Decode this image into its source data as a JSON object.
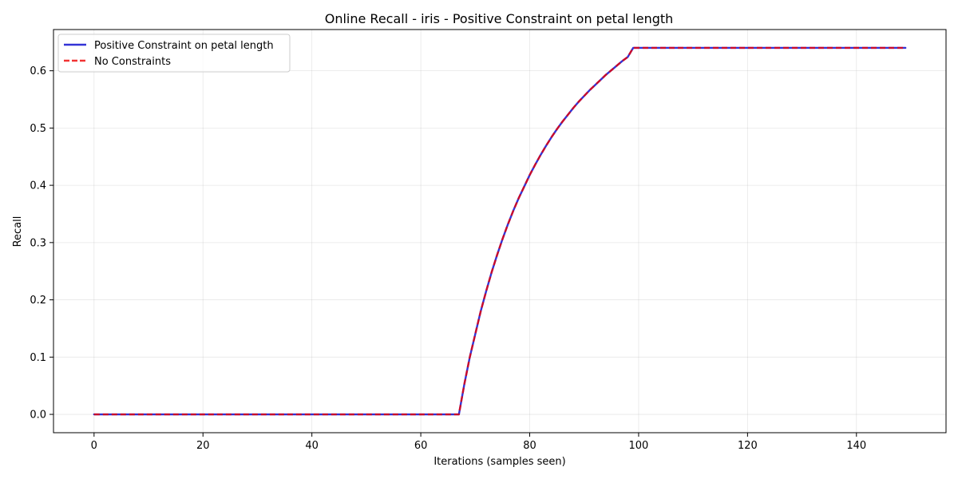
{
  "chart_data": {
    "type": "line",
    "title": "Online Recall - iris - Positive Constraint on petal length",
    "xlabel": "Iterations (samples seen)",
    "ylabel": "Recall",
    "xlim": [
      -7.45,
      156.45
    ],
    "ylim": [
      -0.032,
      0.672
    ],
    "xticks": [
      0,
      20,
      40,
      60,
      80,
      100,
      120,
      140
    ],
    "yticks": [
      0.0,
      0.1,
      0.2,
      0.3,
      0.4,
      0.5,
      0.6
    ],
    "grid": true,
    "legend_position": "top-left",
    "series": [
      {
        "name": "Positive Constraint on petal length",
        "color": "#0000cc",
        "style": "solid",
        "x": [
          0,
          67,
          68,
          69,
          70,
          71,
          72,
          73,
          74,
          75,
          76,
          77,
          78,
          79,
          80,
          81,
          82,
          83,
          84,
          85,
          86,
          87,
          88,
          89,
          90,
          91,
          92,
          93,
          94,
          95,
          96,
          97,
          98,
          99,
          149
        ],
        "y": [
          0.0,
          0.0,
          0.053,
          0.1,
          0.14,
          0.18,
          0.215,
          0.248,
          0.278,
          0.306,
          0.332,
          0.356,
          0.378,
          0.398,
          0.418,
          0.436,
          0.453,
          0.469,
          0.484,
          0.498,
          0.511,
          0.523,
          0.535,
          0.546,
          0.556,
          0.566,
          0.575,
          0.584,
          0.593,
          0.601,
          0.609,
          0.617,
          0.624,
          0.64,
          0.64
        ]
      },
      {
        "name": "No Constraints",
        "color": "#ee0000",
        "style": "dashed",
        "x": [
          0,
          67,
          68,
          69,
          70,
          71,
          72,
          73,
          74,
          75,
          76,
          77,
          78,
          79,
          80,
          81,
          82,
          83,
          84,
          85,
          86,
          87,
          88,
          89,
          90,
          91,
          92,
          93,
          94,
          95,
          96,
          97,
          98,
          99,
          149
        ],
        "y": [
          0.0,
          0.0,
          0.053,
          0.1,
          0.14,
          0.18,
          0.215,
          0.248,
          0.278,
          0.306,
          0.332,
          0.356,
          0.378,
          0.398,
          0.418,
          0.436,
          0.453,
          0.469,
          0.484,
          0.498,
          0.511,
          0.523,
          0.535,
          0.546,
          0.556,
          0.566,
          0.575,
          0.584,
          0.593,
          0.601,
          0.609,
          0.617,
          0.624,
          0.64,
          0.64
        ]
      }
    ]
  }
}
